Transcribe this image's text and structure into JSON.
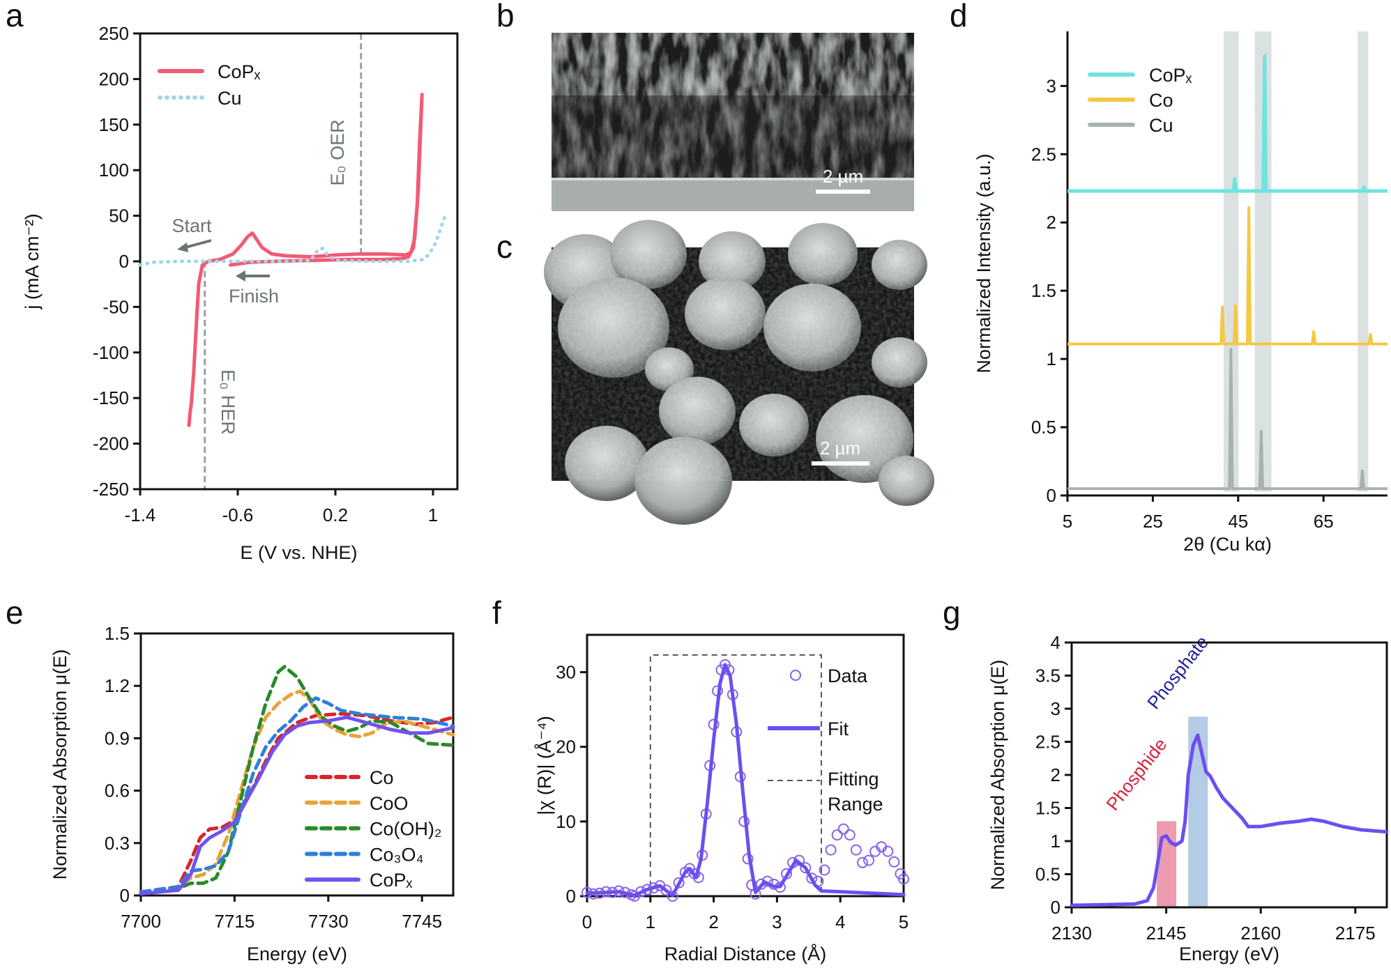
{
  "panels": {
    "a": "a",
    "b": "b",
    "c": "c",
    "d": "d",
    "e": "e",
    "f": "f",
    "g": "g"
  },
  "images": {
    "b": {
      "scale_bar": "2 µm"
    },
    "c": {
      "scale_bar": "2 µm"
    }
  },
  "chart_data": [
    {
      "panel": "a",
      "type": "line",
      "xlabel": "E (V vs. NHE)",
      "ylabel": "j (mA cm⁻²)",
      "xlim": [
        -1.4,
        1.2
      ],
      "ylim": [
        -250,
        250
      ],
      "xticks": [
        "-1.4",
        "-0.6",
        "0.2",
        "1"
      ],
      "yticks": [
        "250",
        "200",
        "150",
        "100",
        "50",
        "0",
        "-50",
        "-100",
        "-150",
        "-200",
        "-250"
      ],
      "grid": false,
      "legend": "top-left",
      "annotations": {
        "start": "Start",
        "finish": "Finish",
        "e0_oer": "E₀ OER",
        "e0_her": "E₀ HER"
      },
      "reference_lines": [
        {
          "label": "E₀ HER",
          "x": -0.87
        },
        {
          "label": "E₀ OER",
          "x": 0.41
        }
      ],
      "series": [
        {
          "name": "CoPₓ",
          "color": "#f25a74",
          "style": "solid",
          "x": [
            -0.66,
            -0.5,
            -0.3,
            0,
            0.3,
            0.6,
            0.75,
            0.8,
            0.84,
            0.87,
            0.89,
            0.91,
            0.9,
            0.88,
            0.85,
            0.82,
            0.78,
            0.6,
            0.4,
            0.2,
            0,
            -0.2,
            -0.32,
            -0.4,
            -0.45,
            -0.48,
            -0.52,
            -0.57,
            -0.64,
            -0.75,
            -0.84,
            -0.89,
            -0.92,
            -0.94,
            -0.96,
            -0.98,
            -0.99,
            -1.0
          ],
          "y": [
            -4,
            -1,
            0,
            1,
            2,
            2,
            3,
            5,
            15,
            60,
            130,
            183,
            150,
            80,
            25,
            10,
            7,
            8,
            8,
            7,
            5,
            6,
            8,
            15,
            25,
            31,
            27,
            18,
            8,
            2,
            0,
            -4,
            -25,
            -70,
            -120,
            -155,
            -165,
            -180
          ]
        },
        {
          "name": "Cu",
          "color": "#9fd6e8",
          "style": "dotted",
          "x": [
            -1.4,
            -1.3,
            -1.1,
            -0.8,
            -0.5,
            -0.2,
            0,
            0.03,
            0.07,
            0.1,
            0.13,
            0.2,
            0.5,
            0.8,
            0.92,
            0.97,
            1.02,
            1.06,
            1.1
          ],
          "y": [
            -4,
            -1,
            0,
            0,
            0,
            0,
            1,
            8,
            14,
            14,
            8,
            1,
            0,
            0,
            2,
            8,
            20,
            35,
            50
          ]
        }
      ]
    },
    {
      "panel": "d",
      "type": "line",
      "xlabel": "2θ (Cu kα)",
      "ylabel": "Normalized Intensity (a.u.)",
      "xlim": [
        5,
        80
      ],
      "ylim": [
        0,
        3.4
      ],
      "xticks": [
        "5",
        "25",
        "45",
        "65"
      ],
      "yticks": [
        "0",
        "0.5",
        "1",
        "1.5",
        "2",
        "2.5",
        "3"
      ],
      "grid": false,
      "legend": "top-left",
      "highlight_bands": [
        [
          41.6,
          45.1
        ],
        [
          48.9,
          52.8
        ],
        [
          73.0,
          75.5
        ]
      ],
      "band_color": "#d5dcdc",
      "series": [
        {
          "name": "CoPₓ",
          "color": "#6fe3e0",
          "baseline": 2.23,
          "peaks": [
            [
              44.2,
              2.32
            ],
            [
              51.2,
              3.22
            ],
            [
              74.5,
              2.26
            ]
          ]
        },
        {
          "name": "Co",
          "color": "#f5c842",
          "baseline": 1.11,
          "peaks": [
            [
              41.3,
              1.38
            ],
            [
              44.4,
              1.39
            ],
            [
              47.5,
              2.11
            ],
            [
              62.7,
              1.2
            ],
            [
              76.0,
              1.18
            ]
          ]
        },
        {
          "name": "Cu",
          "color": "#a9b0b0",
          "baseline": 0.05,
          "peaks": [
            [
              43.3,
              1.07
            ],
            [
              50.4,
              0.47
            ],
            [
              74.1,
              0.18
            ]
          ]
        }
      ]
    },
    {
      "panel": "e",
      "type": "line",
      "xlabel": "Energy (eV)",
      "ylabel": "Normalized Absorption μ(E)",
      "xlim": [
        7700,
        7750
      ],
      "ylim": [
        0,
        1.5
      ],
      "xticks": [
        "7700",
        "7715",
        "7730",
        "7745"
      ],
      "yticks": [
        "0",
        "0.3",
        "0.6",
        "0.9",
        "1.2",
        "1.5"
      ],
      "grid": false,
      "legend": "bottom-right",
      "series": [
        {
          "name": "Co",
          "color": "#d7262b",
          "style": "dashed",
          "x": [
            7700,
            7706,
            7708,
            7709.5,
            7711,
            7713,
            7714.5,
            7716,
            7718,
            7720,
            7722,
            7725,
            7728,
            7732,
            7736,
            7740,
            7744,
            7747,
            7750
          ],
          "y": [
            0.02,
            0.05,
            0.2,
            0.33,
            0.38,
            0.39,
            0.42,
            0.5,
            0.62,
            0.77,
            0.9,
            0.99,
            1.03,
            1.04,
            1.03,
            1.0,
            0.98,
            0.99,
            1.02
          ]
        },
        {
          "name": "CoO",
          "color": "#e8a23a",
          "style": "dashed",
          "x": [
            7700,
            7706,
            7708,
            7710,
            7712,
            7714,
            7716,
            7718,
            7720,
            7722,
            7724,
            7725.5,
            7727,
            7729,
            7731,
            7733,
            7735,
            7737,
            7739,
            7742,
            7746,
            7750
          ],
          "y": [
            0.02,
            0.05,
            0.1,
            0.12,
            0.18,
            0.35,
            0.6,
            0.85,
            1.02,
            1.1,
            1.15,
            1.17,
            1.12,
            1.0,
            0.95,
            0.92,
            0.91,
            0.93,
            0.98,
            1.0,
            0.96,
            0.92
          ]
        },
        {
          "name": "Co(OH)₂",
          "color": "#2a8a2a",
          "style": "dashed",
          "x": [
            7700,
            7706,
            7708,
            7710,
            7712,
            7714,
            7716,
            7718,
            7720,
            7722,
            7723,
            7725,
            7727,
            7729,
            7731,
            7733,
            7735,
            7737,
            7740,
            7743,
            7746,
            7750
          ],
          "y": [
            0.01,
            0.04,
            0.07,
            0.07,
            0.1,
            0.25,
            0.55,
            0.85,
            1.1,
            1.28,
            1.31,
            1.25,
            1.13,
            1.02,
            0.97,
            0.94,
            0.96,
            1.0,
            0.99,
            0.93,
            0.87,
            0.86
          ]
        },
        {
          "name": "Co₃O₄",
          "color": "#2f7fd9",
          "style": "dashed",
          "x": [
            7700,
            7706,
            7708,
            7710,
            7712,
            7714,
            7716,
            7718,
            7720,
            7722,
            7724,
            7726,
            7728,
            7730,
            7732,
            7735,
            7740,
            7745,
            7750
          ],
          "y": [
            0.02,
            0.05,
            0.14,
            0.15,
            0.17,
            0.25,
            0.48,
            0.7,
            0.85,
            0.94,
            1.0,
            1.08,
            1.13,
            1.1,
            1.06,
            1.04,
            1.02,
            1.01,
            0.97
          ]
        },
        {
          "name": "CoPₓ",
          "color": "#7052f0",
          "style": "solid",
          "x": [
            7700,
            7706,
            7708,
            7709.5,
            7711,
            7713,
            7715,
            7717,
            7719,
            7721,
            7723,
            7725,
            7727,
            7730,
            7733,
            7736,
            7740,
            7743,
            7746,
            7750
          ],
          "y": [
            0.01,
            0.03,
            0.12,
            0.28,
            0.33,
            0.37,
            0.42,
            0.55,
            0.68,
            0.82,
            0.92,
            0.97,
            0.99,
            1.0,
            1.02,
            0.99,
            0.95,
            0.93,
            0.93,
            0.96
          ]
        }
      ]
    },
    {
      "panel": "f",
      "type": "scatter",
      "xlabel": "Radial Distance (Å)",
      "ylabel": "|χ (R)| (Å⁻⁴)",
      "xlim": [
        0,
        5
      ],
      "ylim": [
        0,
        35
      ],
      "xticks": [
        "0",
        "1",
        "2",
        "3",
        "4",
        "5"
      ],
      "yticks": [
        "0",
        "10",
        "20",
        "30"
      ],
      "grid": false,
      "legend": "top-right",
      "fitting_range": {
        "label": "Fitting Range",
        "label_lines": [
          "Fitting",
          "Range"
        ],
        "x": [
          1.0,
          3.7
        ],
        "y_top": 32.3
      },
      "series": [
        {
          "name": "Data",
          "color": "#8a62e8",
          "marker": "open-circle",
          "x": [
            0,
            0.1,
            0.2,
            0.3,
            0.4,
            0.5,
            0.6,
            0.7,
            0.75,
            0.85,
            0.95,
            1.05,
            1.15,
            1.25,
            1.35,
            1.45,
            1.55,
            1.62,
            1.7,
            1.76,
            1.82,
            1.88,
            1.94,
            2.0,
            2.06,
            2.12,
            2.18,
            2.24,
            2.3,
            2.36,
            2.42,
            2.48,
            2.54,
            2.6,
            2.66,
            2.75,
            2.85,
            2.95,
            3.05,
            3.15,
            3.25,
            3.35,
            3.45,
            3.55,
            3.65,
            3.75,
            3.85,
            3.95,
            4.05,
            4.15,
            4.25,
            4.35,
            4.45,
            4.55,
            4.65,
            4.75,
            4.85,
            4.95,
            5.0
          ],
          "y": [
            0.5,
            0.3,
            0.4,
            0.6,
            0.5,
            0.7,
            0.5,
            0.2,
            0,
            0.6,
            0.9,
            1.1,
            1.4,
            0.8,
            0,
            1.8,
            3.2,
            3.7,
            3.0,
            2.5,
            5.5,
            11,
            17.5,
            23,
            27.5,
            30.3,
            31,
            30.3,
            27,
            22,
            16,
            10,
            5,
            1.5,
            0.3,
            1.6,
            2.0,
            1.6,
            1.2,
            3.0,
            4.5,
            4.8,
            3.8,
            2.4,
            2.0,
            3.5,
            6.2,
            8.2,
            9,
            8.2,
            6.2,
            4.5,
            4.8,
            6.0,
            6.6,
            6.0,
            4.6,
            3.0,
            2.3
          ]
        },
        {
          "name": "Fit",
          "color": "#6b4ff0",
          "style": "solid",
          "x": [
            0,
            0.3,
            0.5,
            0.75,
            0.95,
            1.15,
            1.35,
            1.55,
            1.62,
            1.72,
            1.8,
            1.9,
            2.0,
            2.1,
            2.18,
            2.26,
            2.36,
            2.46,
            2.56,
            2.66,
            2.8,
            2.95,
            3.05,
            3.3,
            3.45,
            3.6,
            3.7,
            4.0,
            4.5,
            5.0
          ],
          "y": [
            0.4,
            0.5,
            0.6,
            0.1,
            0.9,
            1.4,
            0.1,
            3.2,
            3.7,
            2.5,
            5,
            12.5,
            21,
            28.5,
            31,
            29.5,
            23,
            14,
            5.5,
            0.5,
            1.9,
            1.3,
            1.3,
            4.8,
            3.8,
            1.5,
            0.7,
            0.6,
            0.4,
            0.2
          ]
        }
      ]
    },
    {
      "panel": "g",
      "type": "line",
      "xlabel": "Energy (eV)",
      "ylabel": "Normalized Absorption μ(E)",
      "xlim": [
        2130,
        2180
      ],
      "ylim": [
        0,
        4
      ],
      "xticks": [
        "2130",
        "2145",
        "2160",
        "2175"
      ],
      "yticks": [
        "0",
        "0.5",
        "1",
        "1.5",
        "2",
        "2.5",
        "3",
        "3.5",
        "4"
      ],
      "grid": false,
      "highlight_bands": [
        {
          "label": "Phosphide",
          "x": [
            2143.5,
            2146.6
          ],
          "top": 1.3,
          "color": "#e98aa2",
          "label_color": "#d8203a"
        },
        {
          "label": "Phosphate",
          "x": [
            2148.5,
            2151.6
          ],
          "top": 2.88,
          "color": "#a7c2e0",
          "label_color": "#1f1f9a"
        }
      ],
      "series": [
        {
          "color": "#6b4ff0",
          "style": "solid",
          "x": [
            2130,
            2135,
            2140,
            2142,
            2143,
            2143.7,
            2144.3,
            2145,
            2145.7,
            2146.5,
            2147.5,
            2148,
            2148.5,
            2149.3,
            2150,
            2150.6,
            2151.3,
            2152,
            2153,
            2154,
            2155.5,
            2157,
            2158,
            2160,
            2163,
            2166,
            2168,
            2170,
            2173,
            2176,
            2180
          ],
          "y": [
            0.03,
            0.04,
            0.05,
            0.1,
            0.3,
            0.7,
            1.05,
            1.08,
            0.98,
            0.94,
            1.0,
            1.3,
            2.0,
            2.45,
            2.6,
            2.35,
            2.05,
            1.98,
            1.8,
            1.65,
            1.5,
            1.35,
            1.22,
            1.22,
            1.27,
            1.3,
            1.33,
            1.3,
            1.22,
            1.17,
            1.14
          ]
        }
      ]
    }
  ]
}
